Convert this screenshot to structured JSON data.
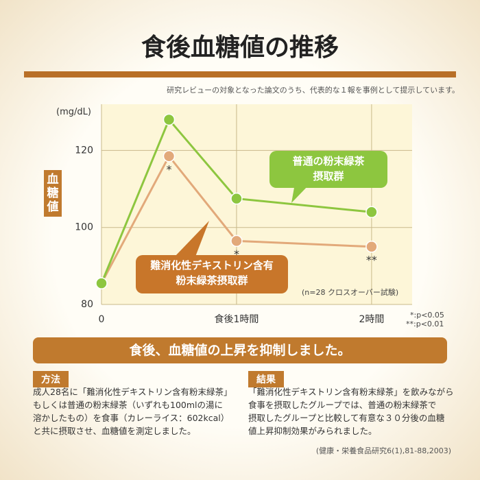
{
  "header": {
    "title": "食後血糖値の推移",
    "note": "研究レビューの対象となった論文のうち、代表的な１報を事例として提示しています。"
  },
  "chart_data": {
    "type": "line",
    "unit": "(mg/dL)",
    "y_label": "血糖値",
    "x": [
      0,
      30,
      60,
      120
    ],
    "xlim": [
      0,
      138
    ],
    "xticks": [
      0,
      {
        "value": 60,
        "label": "食後1時間"
      },
      {
        "value": 120,
        "label": "2時間"
      }
    ],
    "ylim": [
      80,
      132
    ],
    "yticks": [
      80,
      100,
      120
    ],
    "grid": true,
    "series": [
      {
        "name": "普通の粉末緑茶\n摂取群",
        "color": "#8dc63f",
        "values": [
          85.5,
          128,
          107.5,
          104
        ]
      },
      {
        "name": "難消化性デキストリン含有\n粉末緑茶摂取群",
        "color": "#e2a97a",
        "values": [
          85.5,
          118.5,
          96.5,
          95
        ],
        "significance": [
          null,
          "*",
          "*",
          "**"
        ]
      }
    ],
    "annotations": [
      "(n=28 クロスオーバー試験)",
      "*:p<0.05",
      "**:p<0.01"
    ]
  },
  "banner": "食後、血糖値の上昇を抑制しました。",
  "method": {
    "heading": "方法",
    "lines": [
      "成人28名に「難消化性デキストリン含有粉末緑茶」",
      "もしくは普通の粉末緑茶（いずれも100mlの湯に",
      "溶かしたもの）を食事（カレーライス：602kcal）",
      "と共に摂取させ、血糖値を測定しました。"
    ]
  },
  "result": {
    "heading": "結果",
    "lines": [
      "「難消化性デキストリン含有粉末緑茶」を飲みながら",
      "食事を摂取したグループでは、普通の粉末緑茶で",
      "摂取したグループと比較して有意な３０分後の血糖",
      "値上昇抑制効果がみられました。"
    ]
  },
  "citation": "(健康・栄養食品研究6(1),81-88,2003)"
}
